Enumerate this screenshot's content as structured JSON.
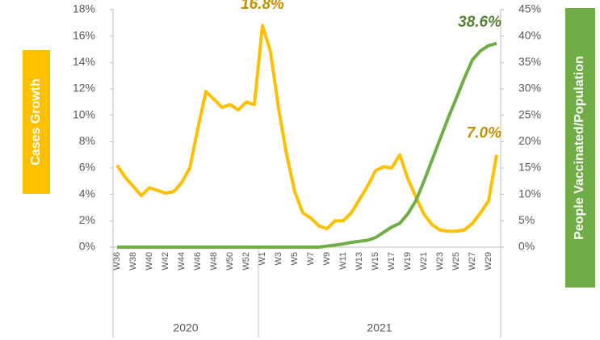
{
  "chart_data": {
    "type": "line",
    "y_label": "Cases Growth",
    "y2_label": "People Vaccinated/Population",
    "categories": [
      "W36",
      null,
      "W38",
      null,
      "W40",
      null,
      "W42",
      null,
      "W44",
      null,
      "W46",
      null,
      "W48",
      null,
      "W50",
      null,
      "W52",
      null,
      "W1",
      null,
      "W3",
      null,
      "W5",
      null,
      "W7",
      null,
      "W9",
      null,
      "W11",
      null,
      "W13",
      null,
      "W15",
      null,
      "W17",
      null,
      "W19",
      null,
      "W21",
      null,
      "W23",
      null,
      "W25",
      null,
      "W27",
      null,
      "W29",
      null
    ],
    "x_groups": [
      {
        "label": "2020",
        "start": 0,
        "end": 17
      },
      {
        "label": "2021",
        "start": 18,
        "end": 47
      }
    ],
    "series": [
      {
        "name": "Cases Growth",
        "color": "#FFC000",
        "label_color": "#BF9000",
        "values": [
          6.2,
          5.3,
          4.6,
          3.9,
          4.5,
          4.3,
          4.1,
          4.2,
          4.9,
          6.0,
          9.0,
          11.8,
          11.2,
          10.6,
          10.8,
          10.4,
          11.0,
          10.8,
          16.8,
          14.8,
          10.5,
          7.0,
          4.2,
          2.6,
          2.2,
          1.6,
          1.4,
          2.0,
          2.0,
          2.6,
          3.6,
          4.6,
          5.8,
          6.1,
          6.0,
          7.0,
          5.2,
          3.8,
          2.5,
          1.7,
          1.3,
          1.2,
          1.2,
          1.3,
          1.8,
          2.6,
          3.5,
          7.0
        ],
        "value_labels": [
          null,
          null,
          null,
          null,
          null,
          null,
          null,
          null,
          null,
          null,
          null,
          null,
          null,
          null,
          null,
          null,
          null,
          null,
          "16.8%",
          null,
          null,
          null,
          null,
          null,
          null,
          null,
          null,
          null,
          null,
          null,
          null,
          null,
          null,
          null,
          null,
          null,
          null,
          null,
          null,
          null,
          null,
          null,
          null,
          null,
          null,
          null,
          null,
          "7.0%"
        ]
      },
      {
        "name": "People Vaccinated/Population",
        "color": "#70AD47",
        "label_color": "#548235",
        "axis": "y2",
        "values": [
          0,
          0,
          0,
          0,
          0,
          0,
          0,
          0,
          0,
          0,
          0,
          0,
          0,
          0,
          0,
          0,
          0,
          0,
          0,
          0,
          0,
          0,
          0,
          0,
          0,
          0,
          0.2,
          0.4,
          0.6,
          0.9,
          1.1,
          1.3,
          1.8,
          2.8,
          3.8,
          4.5,
          6.3,
          8.8,
          12.5,
          16.5,
          20.5,
          24.5,
          28.2,
          32,
          35.5,
          37.2,
          38.2,
          38.6
        ],
        "value_labels": [
          null,
          null,
          null,
          null,
          null,
          null,
          null,
          null,
          null,
          null,
          null,
          null,
          null,
          null,
          null,
          null,
          null,
          null,
          null,
          null,
          null,
          null,
          null,
          null,
          null,
          null,
          null,
          null,
          null,
          null,
          null,
          null,
          null,
          null,
          null,
          null,
          null,
          null,
          null,
          null,
          null,
          null,
          null,
          null,
          null,
          null,
          null,
          "38.6%"
        ]
      }
    ],
    "ylim": [
      0,
      18
    ],
    "yticks": [
      {
        "value": 0,
        "label": "0%"
      },
      {
        "value": 2,
        "label": "2%"
      },
      {
        "value": 4,
        "label": "4%"
      },
      {
        "value": 6,
        "label": "6%"
      },
      {
        "value": 8,
        "label": "8%"
      },
      {
        "value": 10,
        "label": "10%"
      },
      {
        "value": 12,
        "label": "12%"
      },
      {
        "value": 14,
        "label": "14%"
      },
      {
        "value": 16,
        "label": "16%"
      },
      {
        "value": 18,
        "label": "18%"
      }
    ],
    "y2lim": [
      0,
      45
    ],
    "y2ticks": [
      {
        "value": 0,
        "label": "0%"
      },
      {
        "value": 5,
        "label": "5%"
      },
      {
        "value": 10,
        "label": "10%"
      },
      {
        "value": 15,
        "label": "15%"
      },
      {
        "value": 20,
        "label": "20%"
      },
      {
        "value": 25,
        "label": "25%"
      },
      {
        "value": 30,
        "label": "30%"
      },
      {
        "value": 35,
        "label": "35%"
      },
      {
        "value": 40,
        "label": "40%"
      },
      {
        "value": 45,
        "label": "45%"
      }
    ],
    "grid": false
  }
}
